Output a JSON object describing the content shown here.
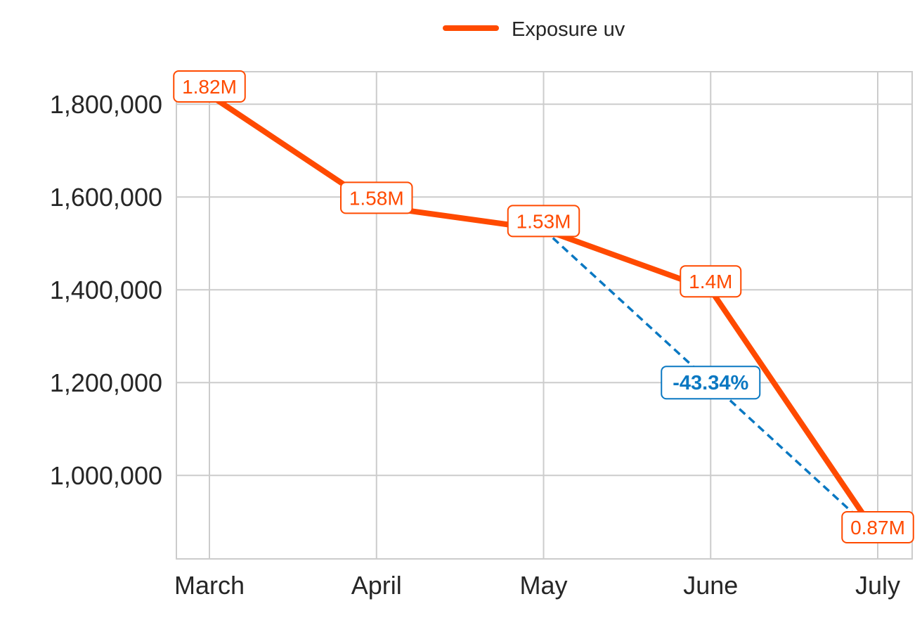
{
  "chart_data": {
    "type": "line",
    "title": "",
    "xlabel": "",
    "ylabel": "",
    "categories": [
      "March",
      "April",
      "May",
      "June",
      "July"
    ],
    "series": [
      {
        "name": "Exposure uv",
        "values": [
          1820000,
          1580000,
          1530000,
          1400000,
          870000
        ],
        "labels": [
          "1.82M",
          "1.58M",
          "1.53M",
          "1.4M",
          "0.87M"
        ],
        "color": "#FF4A00"
      }
    ],
    "annotation": {
      "type": "change",
      "from": "May",
      "to": "July",
      "text": "-43.34%",
      "color": "#0A78C2"
    },
    "ylim": [
      820000,
      1870000
    ],
    "yticks": [
      1000000,
      1200000,
      1400000,
      1600000,
      1800000
    ],
    "ytick_labels": [
      "1,000,000",
      "1,200,000",
      "1,400,000",
      "1,600,000",
      "1,800,000"
    ],
    "grid": true,
    "legend_position": "top-center"
  }
}
